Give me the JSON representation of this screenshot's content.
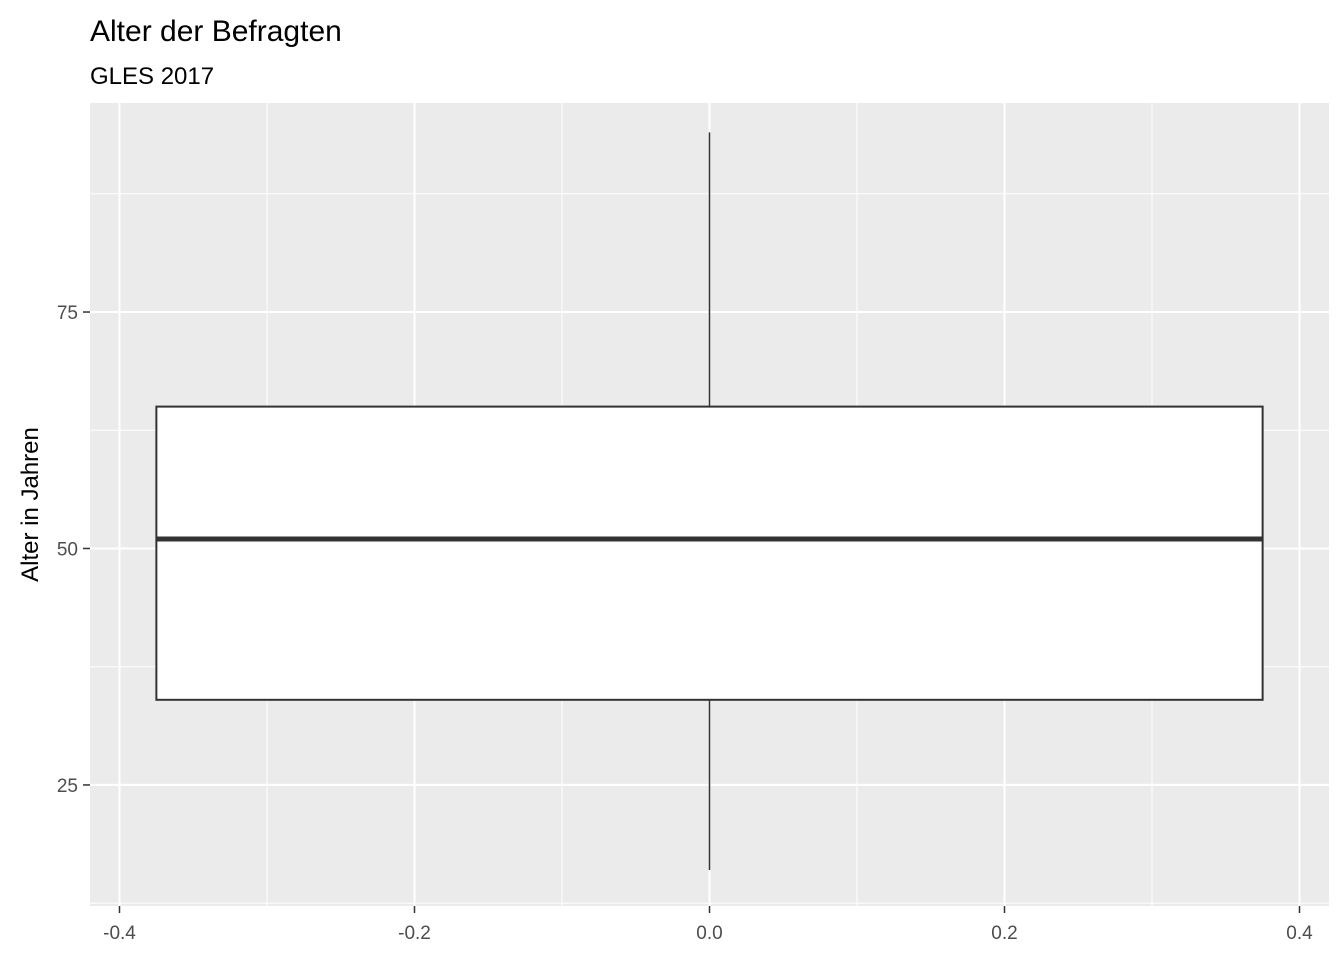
{
  "chart_data": {
    "type": "boxplot",
    "title": "Alter der Befragten",
    "subtitle": "GLES 2017",
    "xlabel": "",
    "ylabel": "Alter in Jahren",
    "xlim": [
      -0.42,
      0.42
    ],
    "ylim": [
      12.2,
      97.1
    ],
    "x_ticks": [
      -0.4,
      -0.2,
      0.0,
      0.2,
      0.4
    ],
    "x_tick_labels": [
      "-0.4",
      "-0.2",
      "0.0",
      "0.2",
      "0.4"
    ],
    "y_ticks": [
      25,
      50,
      75
    ],
    "y_tick_labels": [
      "25",
      "50",
      "75"
    ],
    "grid": true,
    "box": {
      "x_center": 0.0,
      "x_left": -0.375,
      "x_right": 0.375,
      "whisker_low": 16,
      "q1": 34,
      "median": 51,
      "q3": 65,
      "whisker_high": 94
    },
    "colors": {
      "panel_background": "#ebebeb",
      "grid_major": "#ffffff",
      "box_fill": "#ffffff",
      "box_line": "#333333",
      "tick_label": "#4d4d4d"
    }
  }
}
